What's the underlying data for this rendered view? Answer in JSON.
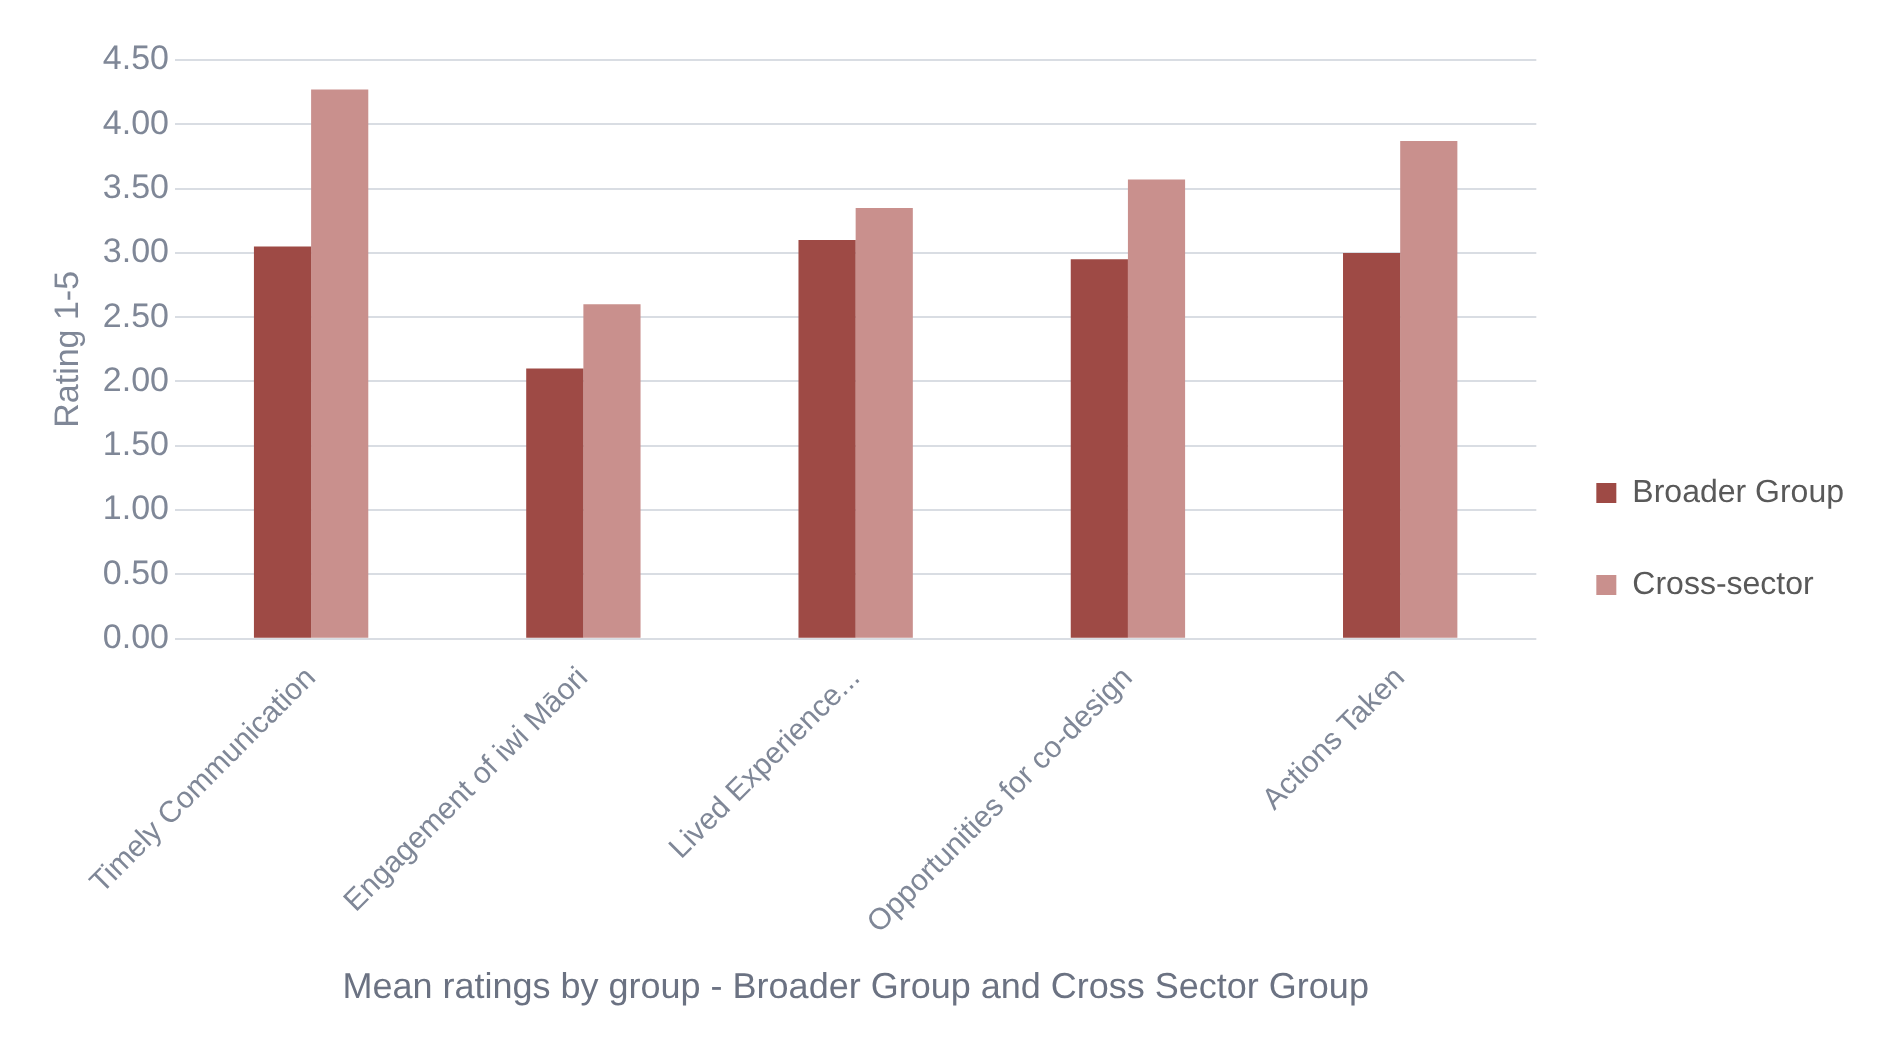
{
  "chart_data": {
    "type": "bar",
    "xlabel": "Mean ratings by group - Broader Group and Cross Sector Group",
    "ylabel": "Rating 1-5",
    "categories": [
      "Timely Communication",
      "Engagement of iwi Māori",
      "Lived Experience...",
      "Opportunities for co-design",
      "Actions Taken"
    ],
    "series": [
      {
        "name": "Broader Group",
        "color": "#9e4a45",
        "values": [
          3.05,
          2.1,
          3.1,
          2.95,
          3.0
        ]
      },
      {
        "name": "Cross-sector",
        "color": "#c9908d",
        "values": [
          4.27,
          2.6,
          3.35,
          3.57,
          3.87
        ]
      }
    ],
    "ylim": [
      0,
      4.5
    ],
    "yticks": [
      {
        "value": 0,
        "label": "0.00"
      },
      {
        "value": 0.5,
        "label": "0.50"
      },
      {
        "value": 1,
        "label": "1.00"
      },
      {
        "value": 1.5,
        "label": "1.50"
      },
      {
        "value": 2,
        "label": "2.00"
      },
      {
        "value": 2.5,
        "label": "2.50"
      },
      {
        "value": 3,
        "label": "3.00"
      },
      {
        "value": 3.5,
        "label": "3.50"
      },
      {
        "value": 4,
        "label": "4.00"
      },
      {
        "value": 4.5,
        "label": "4.50"
      }
    ],
    "grid": "y",
    "legend": "right"
  }
}
